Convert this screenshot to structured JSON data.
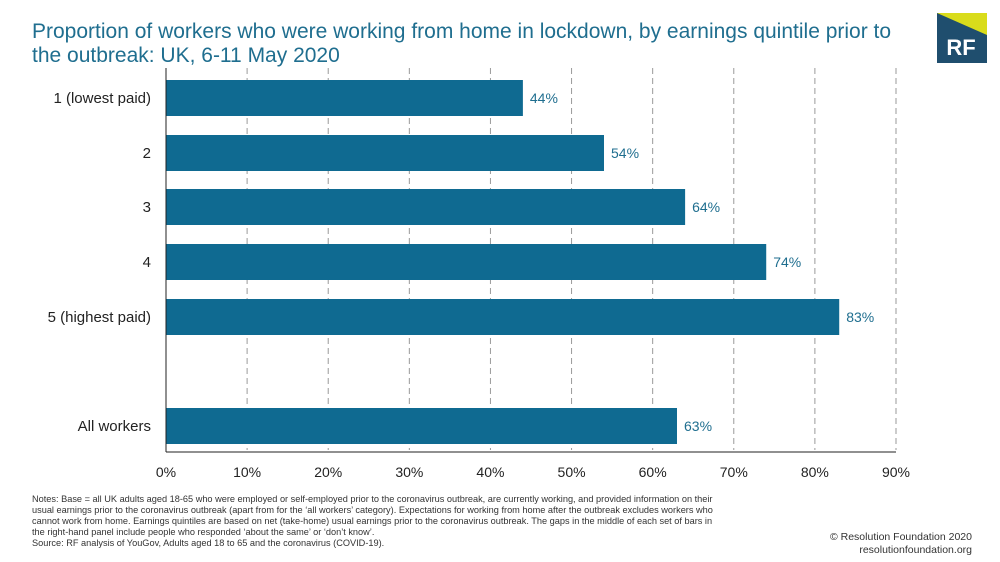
{
  "header": {
    "title": "Proportion of workers who were working from home in lockdown, by earnings quintile prior to the outbreak: UK, 6-11 May 2020"
  },
  "logo": {
    "text": "RF",
    "colors": {
      "accent": "#d9dc1b",
      "navy": "#1f4e6e",
      "text": "#ffffff"
    }
  },
  "chart_data": {
    "type": "bar",
    "orientation": "horizontal",
    "title": "Proportion of workers who were working from home in lockdown, by earnings quintile prior to the outbreak: UK, 6-11 May 2020",
    "categories": [
      "1 (lowest paid)",
      "2",
      "3",
      "4",
      "5 (highest paid)",
      "All workers"
    ],
    "values": [
      44,
      54,
      64,
      74,
      83,
      63
    ],
    "value_labels": [
      "44%",
      "54%",
      "64%",
      "74%",
      "83%",
      "63%"
    ],
    "xlim": [
      0,
      90
    ],
    "xticks": [
      0,
      10,
      20,
      30,
      40,
      50,
      60,
      70,
      80,
      90
    ],
    "xtick_labels": [
      "0%",
      "10%",
      "20%",
      "30%",
      "40%",
      "50%",
      "60%",
      "70%",
      "80%",
      "90%"
    ],
    "xlabel": "",
    "ylabel": "",
    "grid": "vertical dashed",
    "bar_color": "#0f6a91",
    "label_color": "#1f6e8f"
  },
  "footer": {
    "notes": [
      "Notes: Base = all UK adults aged 18-65 who were employed or self-employed prior to the coronavirus outbreak, are currently working, and provided information on their",
      "usual earnings prior to the coronavirus outbreak (apart from for the ‘all workers’ category). Expectations for working from home after the outbreak excludes workers who",
      "cannot work from home. Earnings quintiles are based on net (take-home) usual earnings prior to the coronavirus outbreak. The gaps in the middle of each set of bars in",
      "the right-hand panel include people who responded ‘about the same’ or ‘don’t know’.",
      "Source: RF analysis of YouGov, Adults aged 18 to 65 and the coronavirus (COVID-19)."
    ],
    "copyright": "© Resolution Foundation 2020",
    "website": "resolutionfoundation.org"
  }
}
